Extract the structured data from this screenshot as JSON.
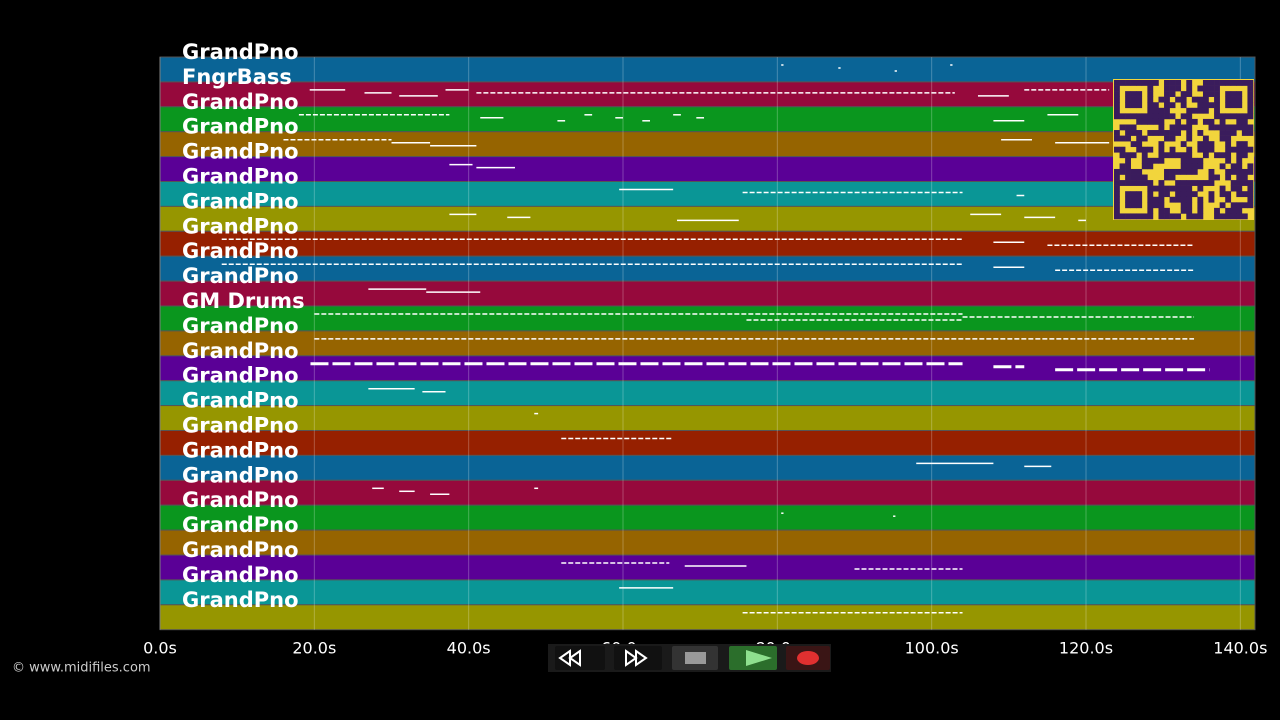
{
  "tracks": [
    {
      "name": "GrandPno",
      "color": "#0a6496",
      "notes": [
        [
          80.5,
          80.8
        ],
        [
          87.9,
          88.2
        ],
        [
          95.2,
          95.5
        ],
        [
          102.4,
          102.7
        ]
      ]
    },
    {
      "name": "FngrBass",
      "color": "#96093c",
      "notes": [
        [
          19.4,
          24
        ],
        [
          26.5,
          30
        ],
        [
          31,
          36
        ],
        [
          37,
          40
        ],
        [
          41,
          103
        ],
        [
          106,
          110
        ],
        [
          112,
          123
        ]
      ]
    },
    {
      "name": "GrandPno",
      "color": "#0a961e",
      "notes": [
        [
          18,
          37.5
        ],
        [
          41.5,
          44.5
        ],
        [
          51.5,
          52.5
        ],
        [
          55,
          56
        ],
        [
          59,
          60
        ],
        [
          62.5,
          63.5
        ],
        [
          66.5,
          67.5
        ],
        [
          69.5,
          70.5
        ],
        [
          108,
          112
        ],
        [
          115,
          119
        ]
      ]
    },
    {
      "name": "GrandPno",
      "color": "#966400",
      "notes": [
        [
          16,
          30
        ],
        [
          30,
          35
        ],
        [
          35,
          41
        ],
        [
          109,
          113
        ],
        [
          116,
          123
        ]
      ]
    },
    {
      "name": "GrandPno",
      "color": "#5a0096",
      "notes": [
        [
          37.5,
          40.5
        ],
        [
          41,
          46
        ]
      ]
    },
    {
      "name": "GrandPno",
      "color": "#0a9696",
      "notes": [
        [
          59.5,
          66.5
        ],
        [
          75.5,
          104
        ],
        [
          111,
          112
        ]
      ]
    },
    {
      "name": "GrandPno",
      "color": "#969600",
      "notes": [
        [
          37.5,
          41
        ],
        [
          45,
          48
        ],
        [
          67,
          75
        ],
        [
          105,
          109
        ],
        [
          112,
          116
        ],
        [
          119,
          120
        ]
      ]
    },
    {
      "name": "GrandPno",
      "color": "#962000",
      "notes": [
        [
          8,
          104
        ],
        [
          108,
          112
        ],
        [
          115,
          134
        ]
      ]
    },
    {
      "name": "GrandPno",
      "color": "#0a6496",
      "notes": [
        [
          8,
          104
        ],
        [
          108,
          112
        ],
        [
          116,
          134
        ]
      ]
    },
    {
      "name": "GrandPno",
      "color": "#96093c",
      "notes": [
        [
          27,
          34.5
        ],
        [
          34.5,
          41.5
        ]
      ]
    },
    {
      "name": "GM Drums",
      "color": "#0a961e",
      "notes": [
        [
          20,
          104
        ],
        [
          104,
          134
        ],
        [
          76,
          104
        ]
      ]
    },
    {
      "name": "GrandPno",
      "color": "#966400",
      "notes": [
        [
          20,
          134
        ]
      ]
    },
    {
      "name": "GrandPno",
      "color": "#5a0096",
      "notes": [
        [
          19.5,
          104
        ],
        [
          108,
          112
        ],
        [
          116,
          136
        ]
      ]
    },
    {
      "name": "GrandPno",
      "color": "#0a9696",
      "notes": [
        [
          27,
          33
        ],
        [
          34,
          37
        ]
      ]
    },
    {
      "name": "GrandPno",
      "color": "#969600",
      "notes": [
        [
          48.5,
          49
        ]
      ]
    },
    {
      "name": "GrandPno",
      "color": "#962000",
      "notes": [
        [
          52,
          66.5
        ]
      ]
    },
    {
      "name": "GrandPno",
      "color": "#0a6496",
      "notes": [
        [
          98,
          108
        ],
        [
          112,
          115.5
        ]
      ]
    },
    {
      "name": "GrandPno",
      "color": "#96093c",
      "notes": [
        [
          27.5,
          29
        ],
        [
          31,
          33
        ],
        [
          35,
          37.5
        ],
        [
          48.5,
          49
        ]
      ]
    },
    {
      "name": "GrandPno",
      "color": "#0a961e",
      "notes": [
        [
          80.5,
          80.8
        ],
        [
          95,
          95.3
        ]
      ]
    },
    {
      "name": "GrandPno",
      "color": "#966400",
      "notes": []
    },
    {
      "name": "GrandPno",
      "color": "#5a0096",
      "notes": [
        [
          52,
          66
        ],
        [
          68,
          76
        ],
        [
          90,
          104
        ]
      ]
    },
    {
      "name": "GrandPno",
      "color": "#0a9696",
      "notes": [
        [
          59.5,
          66.5
        ]
      ]
    },
    {
      "name": "GrandPno",
      "color": "#969600",
      "notes": [
        [
          75.5,
          104
        ]
      ]
    }
  ],
  "time_axis": {
    "xlim": [
      0,
      141.9
    ],
    "ticks": [
      {
        "value": 0,
        "label": "0.0s"
      },
      {
        "value": 20,
        "label": "20.0s"
      },
      {
        "value": 40,
        "label": "40.0s"
      },
      {
        "value": 60,
        "label": "60.0s"
      },
      {
        "value": 80,
        "label": "80.0s"
      },
      {
        "value": 100,
        "label": "100.0s"
      },
      {
        "value": 120,
        "label": "120.0s"
      },
      {
        "value": 140,
        "label": "140.0s"
      }
    ]
  },
  "copyright": "© www.midifiles.com"
}
